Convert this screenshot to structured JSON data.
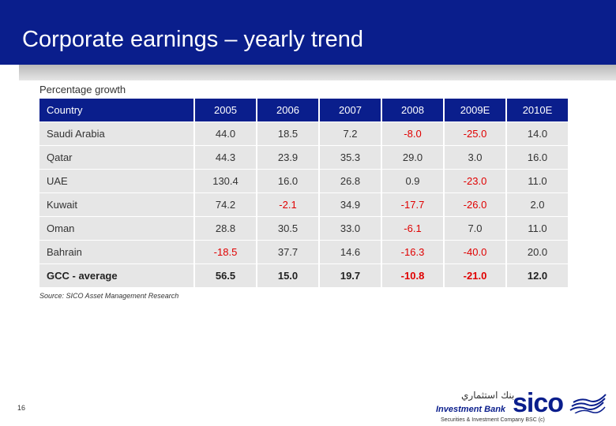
{
  "slide": {
    "title": "Corporate earnings – yearly trend",
    "subtitle": "Percentage growth",
    "source": "Source: SICO Asset Management Research",
    "page_number": "16"
  },
  "table": {
    "headers": [
      "Country",
      "2005",
      "2006",
      "2007",
      "2008",
      "2009E",
      "2010E"
    ],
    "rows": [
      {
        "country": "Saudi Arabia",
        "values": [
          "44.0",
          "18.5",
          "7.2",
          "-8.0",
          "-25.0",
          "14.0"
        ]
      },
      {
        "country": "Qatar",
        "values": [
          "44.3",
          "23.9",
          "35.3",
          "29.0",
          "3.0",
          "16.0"
        ]
      },
      {
        "country": "UAE",
        "values": [
          "130.4",
          "16.0",
          "26.8",
          "0.9",
          "-23.0",
          "11.0"
        ]
      },
      {
        "country": "Kuwait",
        "values": [
          "74.2",
          "-2.1",
          "34.9",
          "-17.7",
          "-26.0",
          "2.0"
        ]
      },
      {
        "country": "Oman",
        "values": [
          "28.8",
          "30.5",
          "33.0",
          "-6.1",
          "7.0",
          "11.0"
        ]
      },
      {
        "country": "Bahrain",
        "values": [
          "-18.5",
          "37.7",
          "14.6",
          "-16.3",
          "-40.0",
          "20.0"
        ]
      },
      {
        "country": "GCC - average",
        "values": [
          "56.5",
          "15.0",
          "19.7",
          "-10.8",
          "-21.0",
          "12.0"
        ]
      }
    ]
  },
  "logo": {
    "arabic_name": "بنك استثماري",
    "bank_name": "Investment Bank",
    "brand": "sico",
    "company": "Securities & Investment Company BSC (c)"
  },
  "colors": {
    "brand_blue": "#0a1e8c",
    "row_background": "#e6e6e6",
    "negative": "#e00000"
  }
}
